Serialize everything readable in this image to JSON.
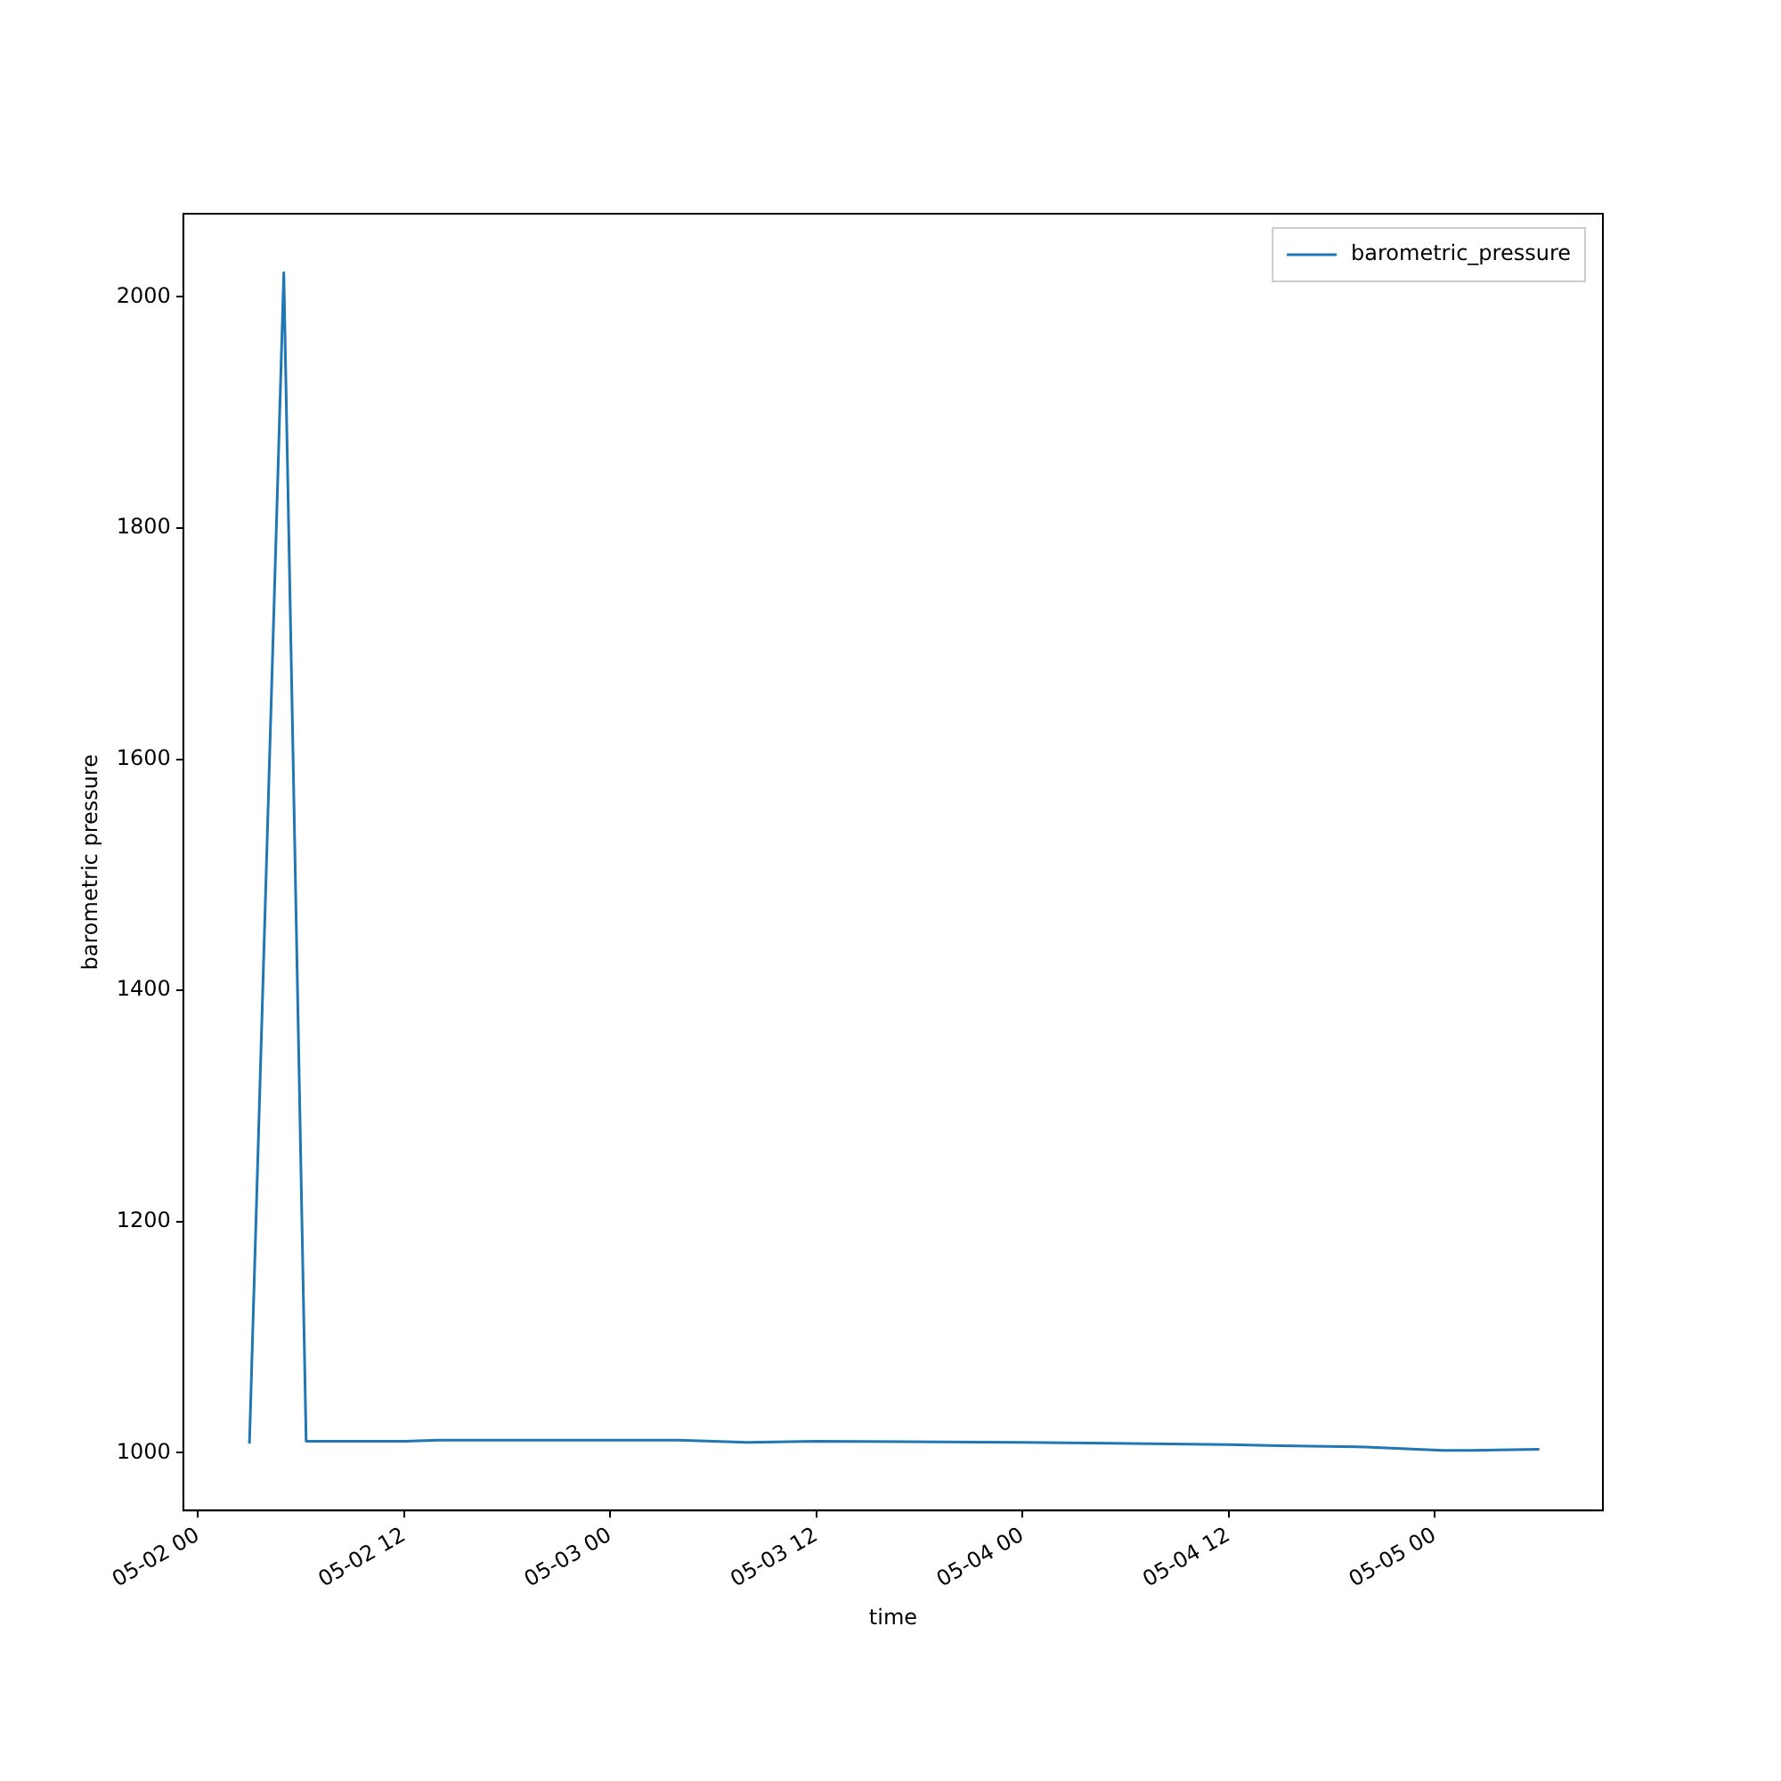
{
  "chart_data": {
    "type": "line",
    "xlabel": "time",
    "ylabel": "barometric pressure",
    "legend": "top right",
    "grid": false,
    "x": [
      "--05-02T03:00",
      "--05-02T05:00",
      "--05-02T06:18",
      "--05-02T12:00",
      "--05-02T14:00",
      "--05-02T21:00",
      "--05-03T04:00",
      "--05-03T08:00",
      "--05-03T12:00",
      "--05-04T00:00",
      "--05-04T12:00",
      "--05-04T15:00",
      "--05-04T20:00",
      "--05-05T00:30",
      "--05-05T02:00",
      "--05-05T06:06"
    ],
    "series": [
      {
        "name": "barometric_pressure",
        "color": "#1f77b4",
        "values": [
          1008,
          2021,
          1010,
          1010,
          1011,
          1011,
          1011,
          1009,
          1010,
          1009,
          1007,
          1006,
          1005,
          1002,
          1002,
          1003
        ]
      }
    ],
    "xlim": [
      "--05-01T23:09",
      "--05-05T09:48"
    ],
    "xticks": [
      {
        "value": "--05-02T00:00",
        "label": "05-02 00"
      },
      {
        "value": "--05-02T12:00",
        "label": "05-02 12"
      },
      {
        "value": "--05-03T00:00",
        "label": "05-03 00"
      },
      {
        "value": "--05-03T12:00",
        "label": "05-03 12"
      },
      {
        "value": "--05-04T00:00",
        "label": "05-04 00"
      },
      {
        "value": "--05-04T12:00",
        "label": "05-04 12"
      },
      {
        "value": "--05-05T00:00",
        "label": "05-05 00"
      }
    ],
    "ylim": [
      950,
      2072
    ],
    "yticks": [
      1000,
      1200,
      1400,
      1600,
      1800,
      2000
    ]
  }
}
